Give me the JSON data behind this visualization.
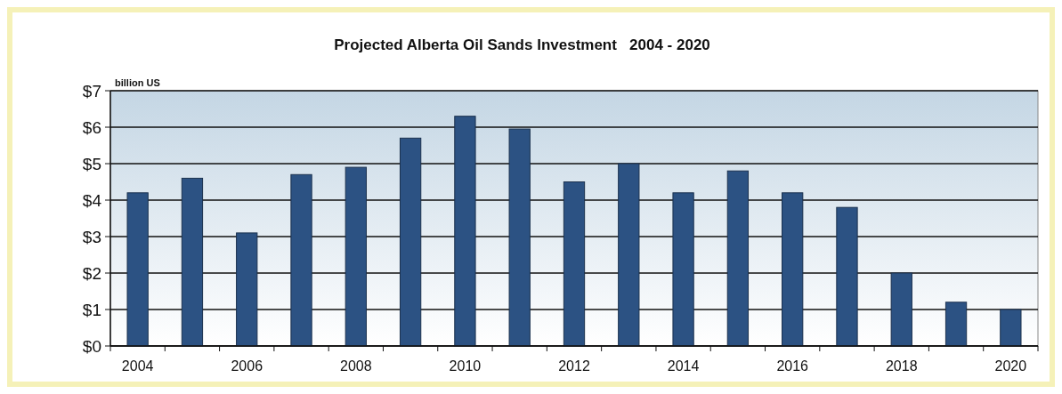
{
  "chart_data": {
    "type": "bar",
    "title": "Projected Alberta Oil Sands Investment   2004 - 2020",
    "ylabel": "billion US",
    "categories": [
      "2004",
      null,
      "2006",
      null,
      "2008",
      null,
      "2010",
      null,
      "2012",
      null,
      "2014",
      null,
      "2016",
      null,
      "2018",
      null,
      "2020"
    ],
    "values": [
      4.2,
      4.6,
      3.1,
      4.7,
      4.9,
      5.7,
      6.3,
      5.95,
      4.5,
      5.0,
      4.2,
      4.8,
      4.2,
      3.8,
      2.0,
      1.2,
      1.0
    ],
    "color": "#2c5283",
    "ylim": [
      0,
      7
    ],
    "yticks": [
      {
        "value": 0,
        "label": "$0"
      },
      {
        "value": 1,
        "label": "$1"
      },
      {
        "value": 2,
        "label": "$2"
      },
      {
        "value": 3,
        "label": "$3"
      },
      {
        "value": 4,
        "label": "$4"
      },
      {
        "value": 5,
        "label": "$5"
      },
      {
        "value": 6,
        "label": "$6"
      },
      {
        "value": 7,
        "label": "$7"
      }
    ],
    "grid": "y"
  }
}
